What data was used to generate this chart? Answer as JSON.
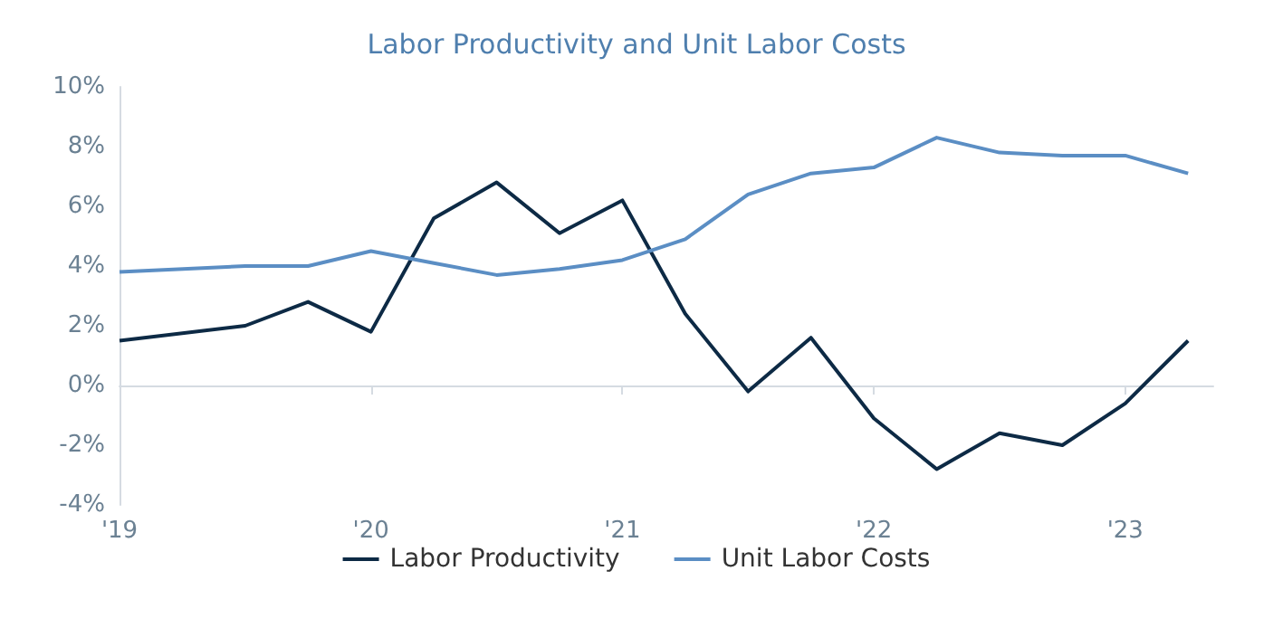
{
  "chart_data": {
    "type": "line",
    "title": "Labor Productivity and Unit Labor Costs",
    "x": [
      2019.0,
      2019.5,
      2019.75,
      2020.0,
      2020.25,
      2020.5,
      2020.75,
      2021.0,
      2021.25,
      2021.5,
      2021.75,
      2022.0,
      2022.25,
      2022.5,
      2022.75,
      2023.0,
      2023.25
    ],
    "series": [
      {
        "name": "Labor Productivity",
        "color": "#0d2a45",
        "values": [
          1.5,
          2.0,
          2.8,
          1.8,
          5.6,
          6.8,
          5.1,
          6.2,
          2.4,
          -0.2,
          1.6,
          -1.1,
          -2.8,
          -1.6,
          -2.0,
          -0.6,
          1.5
        ]
      },
      {
        "name": "Unit Labor Costs",
        "color": "#5b8ec4",
        "values": [
          3.8,
          4.0,
          4.0,
          4.5,
          4.1,
          3.7,
          3.9,
          4.2,
          4.9,
          6.4,
          7.1,
          7.3,
          8.3,
          7.8,
          7.7,
          7.7,
          7.1
        ]
      }
    ],
    "xlim": [
      2019,
      2023.35
    ],
    "xticks": [
      {
        "value": 2019,
        "label": "'19"
      },
      {
        "value": 2020,
        "label": "'20"
      },
      {
        "value": 2021,
        "label": "'21"
      },
      {
        "value": 2022,
        "label": "'22"
      },
      {
        "value": 2023,
        "label": "'23"
      }
    ],
    "ylim": [
      -4,
      10
    ],
    "yticks": [
      {
        "value": -4,
        "label": "-4%"
      },
      {
        "value": -2,
        "label": "-2%"
      },
      {
        "value": 0,
        "label": "0%"
      },
      {
        "value": 2,
        "label": "2%"
      },
      {
        "value": 4,
        "label": "4%"
      },
      {
        "value": 6,
        "label": "6%"
      },
      {
        "value": 8,
        "label": "8%"
      },
      {
        "value": 10,
        "label": "10%"
      }
    ],
    "legend": "bottom",
    "marker": "none",
    "line_style": "solid"
  }
}
